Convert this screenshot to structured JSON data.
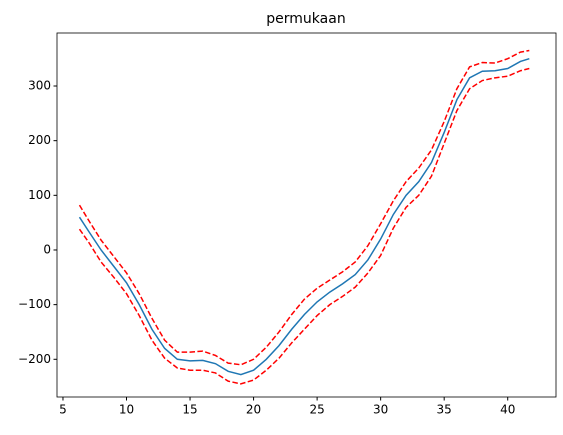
{
  "chart_data": {
    "type": "line",
    "title": "permukaan",
    "x": [
      6.3,
      7,
      8,
      9,
      10,
      11,
      12,
      13,
      14,
      15,
      16,
      17,
      18,
      19,
      20,
      21,
      22,
      23,
      24,
      25,
      26,
      27,
      28,
      29,
      30,
      31,
      32,
      33,
      34,
      35,
      36,
      37,
      38,
      39,
      40,
      41,
      41.7
    ],
    "series": [
      {
        "color": "#1f77b4",
        "linestyle": "solid",
        "values": [
          60,
          35,
          0,
          -30,
          -60,
          -100,
          -145,
          -180,
          -200,
          -203,
          -202,
          -208,
          -222,
          -228,
          -220,
          -200,
          -175,
          -145,
          -118,
          -95,
          -77,
          -62,
          -45,
          -18,
          20,
          65,
          100,
          125,
          160,
          215,
          275,
          315,
          327,
          328,
          332,
          345,
          350
        ]
      },
      {
        "color": "#ff0000",
        "linestyle": "dashed",
        "values": [
          82,
          55,
          18,
          -12,
          -42,
          -80,
          -125,
          -165,
          -187,
          -187,
          -185,
          -193,
          -207,
          -210,
          -200,
          -178,
          -150,
          -118,
          -90,
          -70,
          -55,
          -40,
          -22,
          8,
          48,
          90,
          125,
          150,
          183,
          235,
          295,
          335,
          343,
          342,
          350,
          362,
          365
        ]
      },
      {
        "color": "#ff0000",
        "linestyle": "dashed",
        "values": [
          38,
          15,
          -22,
          -50,
          -80,
          -120,
          -165,
          -198,
          -216,
          -220,
          -220,
          -225,
          -240,
          -245,
          -238,
          -220,
          -198,
          -170,
          -145,
          -120,
          -100,
          -85,
          -68,
          -42,
          -10,
          40,
          78,
          100,
          135,
          195,
          255,
          295,
          310,
          315,
          318,
          328,
          332
        ]
      }
    ],
    "xlim": [
      4.53,
      43.8
    ],
    "xticks": [
      5,
      10,
      15,
      20,
      25,
      30,
      35,
      40
    ],
    "ylim": [
      -269,
      397
    ],
    "yticks": [
      {
        "value": -200,
        "label": "−200"
      },
      {
        "value": -100,
        "label": "−100"
      },
      0,
      100,
      200,
      300
    ],
    "grid": false
  }
}
